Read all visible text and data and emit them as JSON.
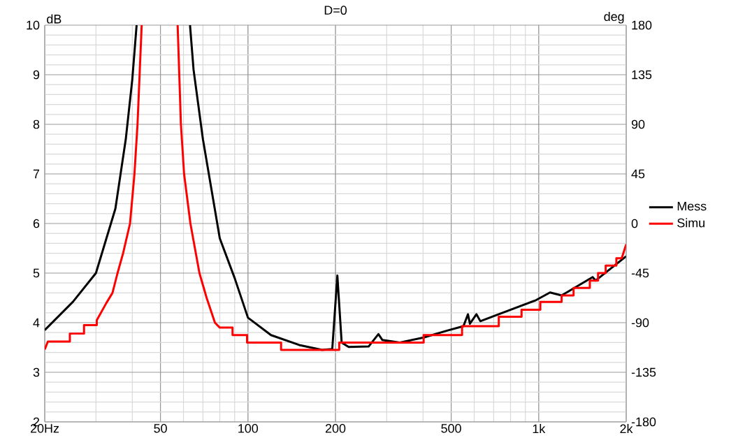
{
  "chart_data": {
    "type": "line",
    "title": "D=0",
    "ylabel": "dB",
    "y2label": "deg",
    "log": "x",
    "grid": true,
    "legend": "right",
    "xlim": [
      20,
      2000
    ],
    "xticks": [
      {
        "value": 20,
        "label": "20Hz"
      },
      {
        "value": 50,
        "label": "50"
      },
      {
        "value": 100,
        "label": "100"
      },
      {
        "value": 200,
        "label": "200"
      },
      {
        "value": 500,
        "label": "500"
      },
      {
        "value": 1000,
        "label": "1k"
      },
      {
        "value": 2000,
        "label": "2k"
      }
    ],
    "ylim": [
      2,
      10
    ],
    "yticks": [
      2,
      3,
      4,
      5,
      6,
      7,
      8,
      9,
      10
    ],
    "y2lim": [
      -180,
      180
    ],
    "y2ticks": [
      -180,
      -135,
      -90,
      -45,
      0,
      45,
      90,
      135,
      180
    ],
    "series": [
      {
        "name": "Mess",
        "color": "#000000",
        "x": [
          20,
          25,
          30,
          35,
          38,
          40,
          41.4,
          50,
          63.2,
          65,
          70,
          80,
          90,
          100,
          120,
          150,
          180,
          195,
          203,
          210,
          222,
          260,
          281,
          290,
          333,
          402,
          484,
          551,
          571,
          580,
          611,
          630,
          729,
          976,
          1094,
          1199,
          1533,
          1570,
          2000
        ],
        "values": [
          3.85,
          4.42,
          5.0,
          6.3,
          7.7,
          8.9,
          10,
          null,
          10,
          9.1,
          7.7,
          5.7,
          4.9,
          4.1,
          3.75,
          3.55,
          3.45,
          3.47,
          4.95,
          3.6,
          3.51,
          3.52,
          3.77,
          3.65,
          3.6,
          3.7,
          3.84,
          3.93,
          4.17,
          3.98,
          4.17,
          4.03,
          4.17,
          4.45,
          4.61,
          4.55,
          4.92,
          4.85,
          5.34
        ]
      },
      {
        "name": "Simu",
        "color": "#ff0000",
        "x": [
          20,
          20.5,
          24.4,
          24.4,
          27.3,
          27.3,
          30.2,
          30.2,
          32.6,
          34.2,
          35.6,
          37.2,
          39.3,
          40.7,
          41.7,
          43.1,
          50,
          57.3,
          58.8,
          60.3,
          63.4,
          68.1,
          72.1,
          77,
          80,
          88.5,
          88.5,
          99.3,
          99.3,
          130,
          130,
          206,
          206,
          402,
          402,
          545,
          545,
          729,
          729,
          873,
          873,
          1013,
          1013,
          1199,
          1199,
          1318,
          1318,
          1499,
          1499,
          1600,
          1600,
          1700,
          1700,
          1850,
          1850,
          1930,
          2000
        ],
        "values": [
          3.46,
          3.62,
          3.62,
          3.78,
          3.78,
          3.95,
          3.95,
          4.05,
          4.4,
          4.6,
          5.0,
          5.4,
          6.0,
          7.0,
          8.0,
          10,
          null,
          10,
          8,
          7,
          6,
          5,
          4.5,
          4.0,
          3.9,
          3.9,
          3.75,
          3.75,
          3.6,
          3.6,
          3.45,
          3.45,
          3.6,
          3.6,
          3.75,
          3.75,
          3.93,
          3.93,
          4.12,
          4.12,
          4.26,
          4.26,
          4.42,
          4.42,
          4.55,
          4.55,
          4.7,
          4.7,
          4.85,
          4.85,
          5.0,
          5.0,
          5.15,
          5.15,
          5.3,
          5.3,
          5.58
        ]
      }
    ]
  }
}
